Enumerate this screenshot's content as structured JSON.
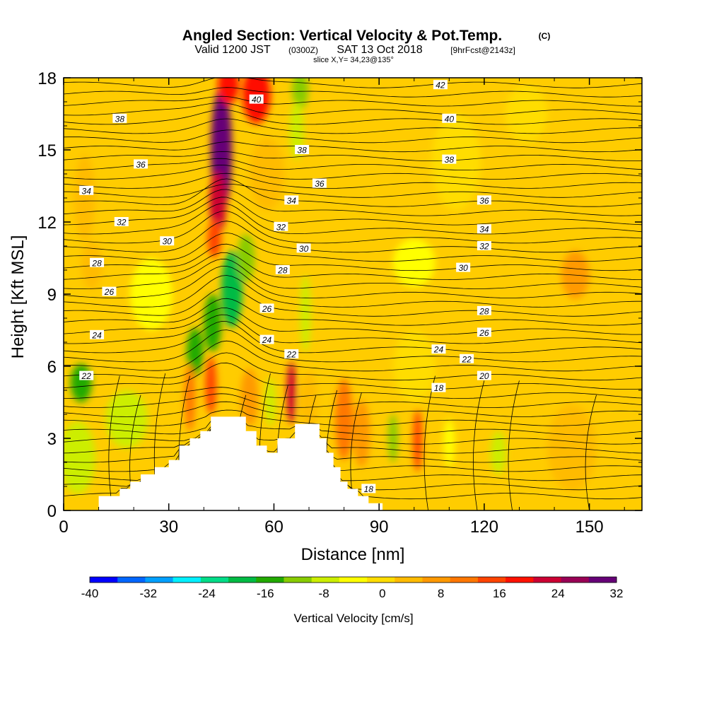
{
  "chart_data": {
    "type": "heatmap",
    "title": "Angled Section: Vertical Velocity & Pot.Temp.",
    "title_unit": "(C)",
    "subtitle_valid": "Valid 1200 JST",
    "subtitle_zulu": "(0300Z)",
    "subtitle_date": "SAT 13 Oct 2018",
    "subtitle_fcst": "[9hrFcst@2143z]",
    "slice_label": "slice X,Y= 34,23@135°",
    "xlabel": "Distance [nm]",
    "ylabel": "Height [Kft MSL]",
    "xlim": [
      0,
      165
    ],
    "ylim": [
      0,
      18
    ],
    "x_ticks": [
      "0",
      "30",
      "60",
      "90",
      "120",
      "150"
    ],
    "y_ticks": [
      "0",
      "3",
      "6",
      "9",
      "12",
      "15",
      "18"
    ],
    "colorbar": {
      "label": "Vertical Velocity [cm/s]",
      "range": [
        -40,
        32
      ],
      "step": 4,
      "tick_labels": [
        "-40",
        "-32",
        "-24",
        "-16",
        "-8",
        "0",
        "8",
        "16",
        "24",
        "32"
      ],
      "colors": [
        "#0000ff",
        "#0066ff",
        "#00a0ff",
        "#00f0ff",
        "#00dd88",
        "#00bb44",
        "#22aa00",
        "#88cc00",
        "#ccee00",
        "#ffff00",
        "#ffdd00",
        "#ffbb00",
        "#ff9900",
        "#ff7700",
        "#ff4400",
        "#ff1100",
        "#cc0033",
        "#990055",
        "#660077"
      ]
    },
    "terrain_profile": {
      "x": [
        0,
        10,
        10,
        16,
        16,
        19,
        19,
        22,
        22,
        26,
        26,
        30,
        30,
        33,
        33,
        36,
        36,
        39,
        39,
        42,
        42,
        52,
        52,
        55,
        55,
        58,
        58,
        61,
        61,
        66,
        66,
        73,
        73,
        75,
        75,
        77,
        77,
        79,
        79,
        81,
        81,
        84,
        84,
        87,
        87,
        91,
        91,
        165
      ],
      "z": [
        0,
        0,
        0.6,
        0.6,
        0.9,
        0.9,
        1.2,
        1.2,
        1.5,
        1.5,
        1.8,
        1.8,
        2.1,
        2.1,
        2.7,
        2.7,
        3.0,
        3.0,
        3.3,
        3.3,
        3.9,
        3.9,
        3.3,
        3.3,
        2.7,
        2.7,
        2.4,
        2.4,
        3.0,
        3.0,
        3.6,
        3.6,
        3.0,
        3.0,
        2.4,
        2.4,
        1.8,
        1.8,
        1.2,
        1.2,
        0.9,
        0.9,
        0.6,
        0.6,
        0.3,
        0.3,
        0,
        0
      ]
    },
    "vertical_velocity_features": [
      {
        "x": 45,
        "z": 15,
        "value": 32,
        "sx": 3,
        "sz": 2.6
      },
      {
        "x": 44,
        "z": 12.8,
        "value": 24,
        "sx": 2.4,
        "sz": 1.3
      },
      {
        "x": 43,
        "z": 11.3,
        "value": 16,
        "sx": 2.0,
        "sz": 0.8
      },
      {
        "x": 55,
        "z": 17.3,
        "value": 20,
        "sx": 4,
        "sz": 1.2
      },
      {
        "x": 47,
        "z": 17.7,
        "value": 22,
        "sx": 3,
        "sz": 0.8
      },
      {
        "x": 48,
        "z": 9.2,
        "value": -18,
        "sx": 3,
        "sz": 1.6
      },
      {
        "x": 42.5,
        "z": 7.8,
        "value": -16,
        "sx": 2.5,
        "sz": 1.2
      },
      {
        "x": 37.5,
        "z": 6.6,
        "value": -14,
        "sx": 2.4,
        "sz": 1.0
      },
      {
        "x": 52,
        "z": 10.5,
        "value": -10,
        "sx": 2.5,
        "sz": 1.0
      },
      {
        "x": 5,
        "z": 5.3,
        "value": -16,
        "sx": 3,
        "sz": 0.8
      },
      {
        "x": 4,
        "z": 2.2,
        "value": -7,
        "sx": 5,
        "sz": 1.5
      },
      {
        "x": 18,
        "z": 3.8,
        "value": -5,
        "sx": 6,
        "sz": 1.2
      },
      {
        "x": 36,
        "z": 4.7,
        "value": 14,
        "sx": 1.5,
        "sz": 1.4
      },
      {
        "x": 42,
        "z": 5.2,
        "value": 18,
        "sx": 1.6,
        "sz": 1.2
      },
      {
        "x": 53,
        "z": 4.7,
        "value": 10,
        "sx": 2.5,
        "sz": 1.2
      },
      {
        "x": 65,
        "z": 4.9,
        "value": 26,
        "sx": 1.3,
        "sz": 1.3
      },
      {
        "x": 59,
        "z": 4.5,
        "value": -6,
        "sx": 1.5,
        "sz": 1.0
      },
      {
        "x": 70,
        "z": 4.5,
        "value": 6,
        "sx": 2.5,
        "sz": 1.3
      },
      {
        "x": 80,
        "z": 3.8,
        "value": 14,
        "sx": 2.5,
        "sz": 1.7
      },
      {
        "x": 85,
        "z": 3.2,
        "value": 10,
        "sx": 2.5,
        "sz": 1.4
      },
      {
        "x": 67.5,
        "z": 17.5,
        "value": -10,
        "sx": 2.3,
        "sz": 0.8
      },
      {
        "x": 66.5,
        "z": 15.8,
        "value": -5,
        "sx": 2.0,
        "sz": 1.2
      },
      {
        "x": 69,
        "z": 8.2,
        "value": -5,
        "sx": 1.5,
        "sz": 1.6
      },
      {
        "x": 94,
        "z": 3.0,
        "value": -10,
        "sx": 1.4,
        "sz": 1.0
      },
      {
        "x": 101,
        "z": 2.9,
        "value": 18,
        "sx": 1.3,
        "sz": 1.3
      },
      {
        "x": 110,
        "z": 2.8,
        "value": -4,
        "sx": 1.6,
        "sz": 1.0
      },
      {
        "x": 124,
        "z": 2.4,
        "value": -5,
        "sx": 2.2,
        "sz": 0.9
      },
      {
        "x": 145,
        "z": 2.6,
        "value": 6,
        "sx": 7,
        "sz": 1.8
      },
      {
        "x": 146,
        "z": 9.8,
        "value": 8,
        "sx": 4,
        "sz": 1.0
      },
      {
        "x": 6,
        "z": 13.0,
        "value": 7,
        "sx": 3,
        "sz": 1.8
      },
      {
        "x": 8,
        "z": 10.2,
        "value": 6,
        "sx": 3,
        "sz": 1.0
      },
      {
        "x": 58,
        "z": 14.0,
        "value": 4,
        "sx": 5,
        "sz": 1.5
      },
      {
        "x": 112,
        "z": 14.5,
        "value": 3,
        "sx": 7,
        "sz": 2.0
      },
      {
        "x": 132,
        "z": 16.5,
        "value": 2,
        "sx": 6,
        "sz": 1.2
      },
      {
        "x": 100,
        "z": 10.3,
        "value": -1,
        "sx": 6,
        "sz": 1.0
      },
      {
        "x": 25,
        "z": 9.0,
        "value": -2,
        "sx": 6,
        "sz": 1.5
      },
      {
        "x": 100,
        "z": 6.0,
        "value": 3,
        "sx": 6,
        "sz": 1.5
      }
    ],
    "contour_labels": [
      {
        "value": "42",
        "x": 107.5,
        "z": 17.7
      },
      {
        "value": "40",
        "x": 55,
        "z": 17.1
      },
      {
        "value": "40",
        "x": 110,
        "z": 16.3
      },
      {
        "value": "38",
        "x": 16,
        "z": 16.3
      },
      {
        "value": "38",
        "x": 68,
        "z": 15.0
      },
      {
        "value": "38",
        "x": 110,
        "z": 14.6
      },
      {
        "value": "36",
        "x": 22,
        "z": 14.4
      },
      {
        "value": "36",
        "x": 73,
        "z": 13.6
      },
      {
        "value": "36",
        "x": 120,
        "z": 12.9
      },
      {
        "value": "34",
        "x": 6.5,
        "z": 13.3
      },
      {
        "value": "34",
        "x": 65,
        "z": 12.9
      },
      {
        "value": "34",
        "x": 120,
        "z": 11.7
      },
      {
        "value": "32",
        "x": 16.5,
        "z": 12.0
      },
      {
        "value": "32",
        "x": 62,
        "z": 11.8
      },
      {
        "value": "32",
        "x": 120,
        "z": 11.0
      },
      {
        "value": "30",
        "x": 29.5,
        "z": 11.2
      },
      {
        "value": "30",
        "x": 68.5,
        "z": 10.9
      },
      {
        "value": "30",
        "x": 114,
        "z": 10.1
      },
      {
        "value": "28",
        "x": 9.5,
        "z": 10.3
      },
      {
        "value": "28",
        "x": 62.5,
        "z": 10.0
      },
      {
        "value": "28",
        "x": 120,
        "z": 8.3
      },
      {
        "value": "26",
        "x": 13,
        "z": 9.1
      },
      {
        "value": "26",
        "x": 58,
        "z": 8.4
      },
      {
        "value": "26",
        "x": 120,
        "z": 7.4
      },
      {
        "value": "24",
        "x": 9.5,
        "z": 7.3
      },
      {
        "value": "24",
        "x": 58,
        "z": 7.1
      },
      {
        "value": "24",
        "x": 107,
        "z": 6.7
      },
      {
        "value": "22",
        "x": 6.5,
        "z": 5.6
      },
      {
        "value": "22",
        "x": 65,
        "z": 6.5
      },
      {
        "value": "22",
        "x": 115,
        "z": 6.3
      },
      {
        "value": "20",
        "x": 120,
        "z": 5.6
      },
      {
        "value": "18",
        "x": 107,
        "z": 5.1
      },
      {
        "value": "18",
        "x": 87,
        "z": 0.9
      }
    ]
  }
}
